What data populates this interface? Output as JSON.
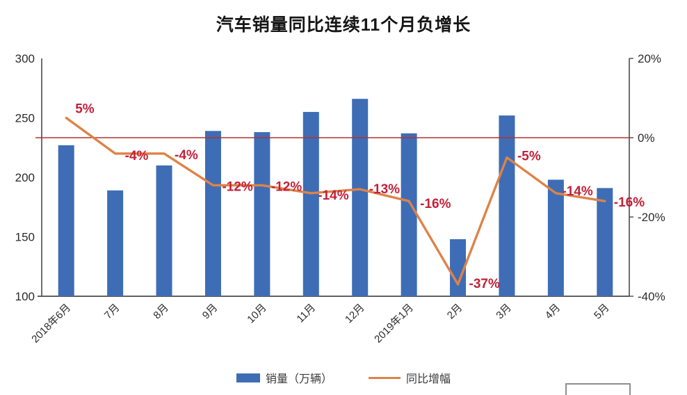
{
  "title": "汽车销量同比连续11个月负增长",
  "legend": {
    "bar_label": "销量（万辆）",
    "line_label": "同比增幅"
  },
  "colors": {
    "bar": "#3e6db6",
    "line": "#dd8347",
    "data_label": "#c32139",
    "zero_line": "#b23230",
    "axis": "#4a4a4a",
    "axis_text": "#2b2b2b"
  },
  "chart_data": {
    "type": "bar",
    "subtype": "bar+line dual axis",
    "title": "汽车销量同比连续11个月负增长",
    "categories": [
      "2018年6月",
      "7月",
      "8月",
      "9月",
      "10月",
      "11月",
      "12月",
      "2019年1月",
      "2月",
      "3月",
      "4月",
      "5月"
    ],
    "series": [
      {
        "name": "销量（万辆）",
        "type": "bar",
        "axis": "left",
        "values": [
          227,
          189,
          210,
          239,
          238,
          255,
          266,
          237,
          148,
          252,
          198,
          191
        ],
        "color": "#3e6db6"
      },
      {
        "name": "同比增幅",
        "type": "line",
        "axis": "right",
        "values": [
          5,
          -4,
          -4,
          -12,
          -12,
          -14,
          -13,
          -16,
          -37,
          -5,
          -14,
          -16
        ],
        "labels": [
          "5%",
          "-4%",
          "-4%",
          "-12%",
          "-12%",
          "-14%",
          "-13%",
          "-16%",
          "-37%",
          "-5%",
          "-14%",
          "-16%"
        ],
        "color": "#dd8347",
        "label_color": "#c32139"
      }
    ],
    "left_axis": {
      "min": 100,
      "max": 300,
      "ticks": [
        300,
        250,
        200,
        150,
        100
      ],
      "tick_labels": [
        "300",
        "250",
        "200",
        "150",
        "100"
      ]
    },
    "right_axis": {
      "min": -40,
      "max": 20,
      "ticks": [
        20,
        0,
        -20,
        -40
      ],
      "tick_labels": [
        "20%",
        "0%",
        "-20%",
        "-40%"
      ]
    },
    "zero_line": {
      "axis": "right",
      "value": 0,
      "color": "#b23230"
    },
    "grid": false,
    "legend_position": "bottom",
    "x_tick_rotation": -45
  }
}
